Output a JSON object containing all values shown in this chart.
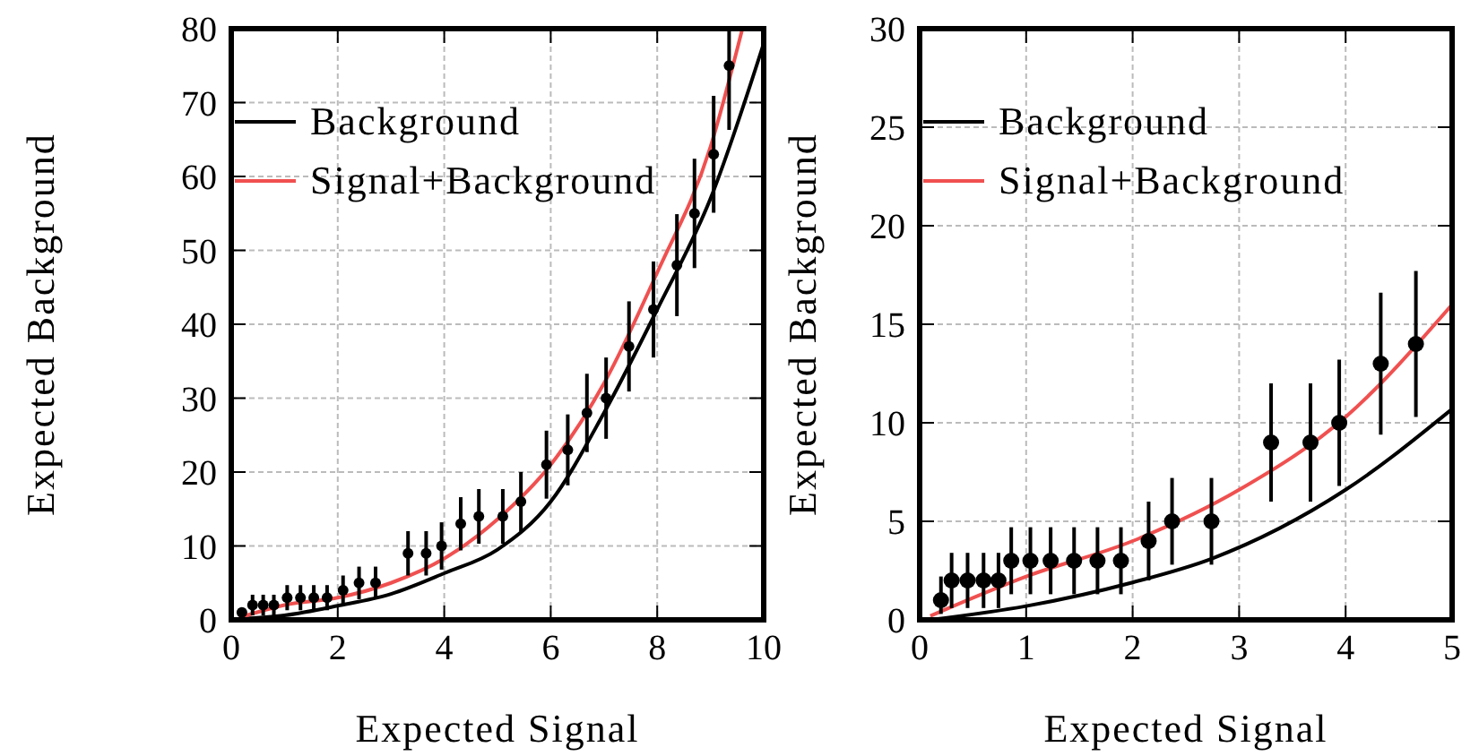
{
  "chart_data": [
    {
      "type": "scatter",
      "xlabel": "Expected Signal",
      "ylabel": "Expected Background",
      "xlim": [
        0,
        10
      ],
      "ylim": [
        0,
        80
      ],
      "xticks": [
        0,
        2,
        4,
        6,
        8,
        10
      ],
      "yticks": [
        0,
        10,
        20,
        30,
        40,
        50,
        60,
        70,
        80
      ],
      "grid": true,
      "legend": "top left",
      "series": [
        {
          "name": "Background",
          "type": "line",
          "color": "#000000",
          "x": [
            0.15,
            1,
            2,
            3,
            4,
            5,
            6,
            7,
            8,
            9,
            10
          ],
          "values": [
            0.1,
            0.6,
            1.9,
            3.5,
            6.3,
            9.5,
            16,
            28,
            42,
            57,
            78
          ]
        },
        {
          "name": "Signal+Background",
          "type": "line",
          "color": "#f05050",
          "x": [
            0.15,
            1,
            2,
            3,
            4,
            5,
            6,
            7,
            8,
            9,
            9.6
          ],
          "values": [
            0.3,
            2,
            3,
            5,
            8.3,
            13.6,
            21,
            32,
            47,
            64,
            80
          ]
        },
        {
          "color": "#000000",
          "marker": "circle",
          "x": [
            0.2,
            0.4,
            0.6,
            0.8,
            1.05,
            1.3,
            1.55,
            1.8,
            2.1,
            2.4,
            2.71,
            3.32,
            3.66,
            3.95,
            4.31,
            4.65,
            5.1,
            5.44,
            5.92,
            6.32,
            6.68,
            7.04,
            7.47,
            7.93,
            8.37,
            8.7,
            9.06,
            9.35
          ],
          "values": [
            1,
            2,
            2,
            2,
            3,
            3,
            3,
            3,
            4,
            5,
            5,
            9,
            9,
            10,
            13,
            14,
            14,
            16,
            21,
            23,
            28,
            30,
            37,
            42,
            48,
            55,
            63,
            75
          ],
          "errors": [
            null,
            1.4,
            1.4,
            1.4,
            1.7,
            1.7,
            1.7,
            1.7,
            2,
            2.2,
            2.2,
            3,
            3,
            3.2,
            3.6,
            3.7,
            3.7,
            4,
            4.6,
            4.8,
            5.3,
            5.5,
            6.1,
            6.5,
            6.9,
            7.4,
            7.9,
            [
              66.3,
              80
            ]
          ]
        }
      ]
    },
    {
      "type": "scatter",
      "xlabel": "Expected Signal",
      "ylabel": "Expected Background",
      "xlim": [
        0,
        5
      ],
      "ylim": [
        0,
        30
      ],
      "xticks": [
        0,
        1,
        2,
        3,
        4,
        5
      ],
      "yticks": [
        0,
        5,
        10,
        15,
        20,
        25,
        30
      ],
      "grid": true,
      "legend": "top left",
      "series": [
        {
          "name": "Background",
          "type": "line",
          "color": "#000000",
          "x": [
            0.1,
            1,
            2,
            2.74,
            4,
            5
          ],
          "values": [
            0,
            0.7,
            1.9,
            3.1,
            6.6,
            10.7
          ]
        },
        {
          "name": "Signal+Background",
          "type": "line",
          "color": "#f05050",
          "x": [
            0.1,
            1,
            2,
            3,
            4,
            5
          ],
          "values": [
            0.2,
            2.2,
            4,
            6.6,
            10.3,
            16
          ]
        },
        {
          "color": "#000000",
          "marker": "circle",
          "x": [
            0.2,
            0.3,
            0.45,
            0.6,
            0.74,
            0.86,
            1.04,
            1.23,
            1.45,
            1.67,
            1.89,
            2.15,
            2.37,
            2.74,
            3.3,
            3.67,
            3.94,
            4.33,
            4.66
          ],
          "values": [
            1,
            2,
            2,
            2,
            2,
            3,
            3,
            3,
            3,
            3,
            3,
            4,
            5,
            5,
            9,
            9,
            10,
            13,
            14
          ],
          "errors": [
            [
              0.3,
              2.2
            ],
            1.4,
            1.4,
            1.4,
            1.4,
            1.7,
            1.7,
            1.7,
            1.7,
            1.7,
            1.7,
            2,
            2.2,
            2.2,
            3,
            3,
            3.2,
            3.6,
            3.7
          ]
        }
      ]
    }
  ]
}
